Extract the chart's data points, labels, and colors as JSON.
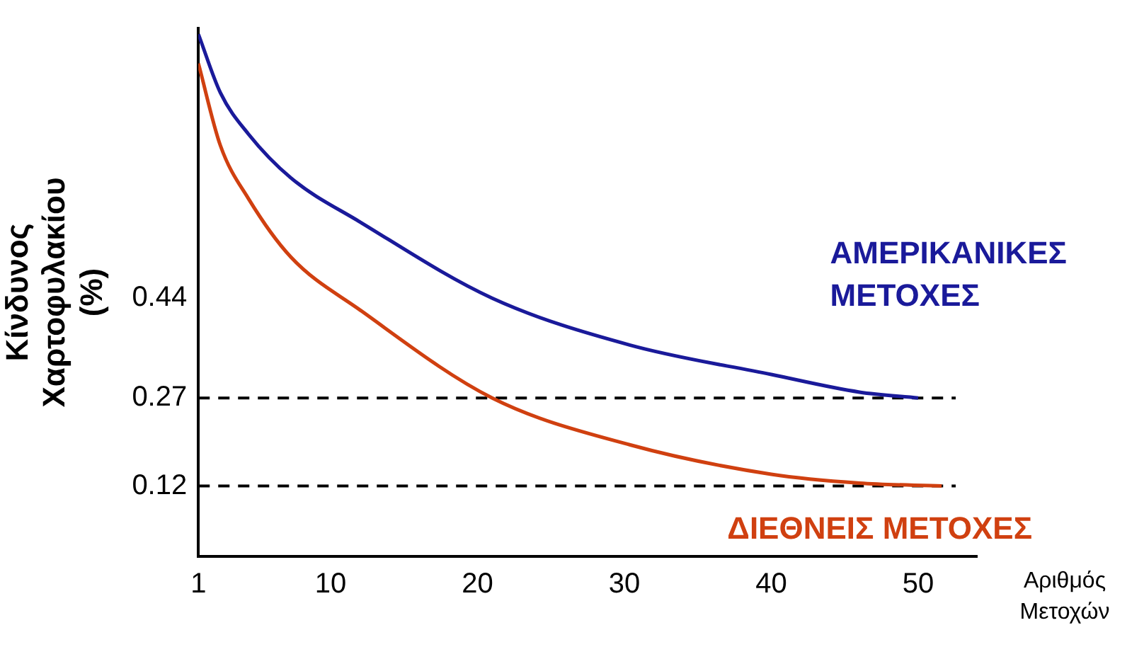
{
  "chart_data": {
    "type": "line",
    "ylabel": "Κίνδυνος Χαρτοφυλακίου (%)",
    "xlabel": "Αριθμός Μετοχών",
    "xlim": [
      1,
      54
    ],
    "xticks": [
      1,
      10,
      20,
      30,
      40,
      50
    ],
    "ylim": [
      0,
      0.9
    ],
    "yticks": [
      0.12,
      0.27,
      0.44
    ],
    "grid": false,
    "legend": false,
    "marker": "none",
    "line_style": "solid",
    "series": [
      {
        "name": "ΑΜΕΡΙΚΑΝΙΚΕΣ ΜΕΤΟΧΕΣ",
        "color": "#1a1a9a",
        "x": [
          1,
          2.5,
          4.4,
          7.3,
          12,
          21,
          30.4,
          40,
          46,
          50
        ],
        "values": [
          0.89,
          0.79,
          0.72,
          0.645,
          0.57,
          0.44,
          0.36,
          0.31,
          0.28,
          0.27
        ]
      },
      {
        "name": "ΔΙΕΘΝΕΙΣ ΜΕΤΟΧΕΣ",
        "color": "#d04010",
        "x": [
          1,
          2.5,
          4.4,
          7.3,
          12,
          21,
          30.4,
          40,
          46,
          51.6
        ],
        "values": [
          0.84,
          0.7,
          0.61,
          0.51,
          0.42,
          0.27,
          0.19,
          0.14,
          0.125,
          0.12
        ]
      }
    ],
    "ref_lines": [
      {
        "axis": "y",
        "value": 0.27,
        "color": "#000000",
        "line_style": "dashed"
      },
      {
        "axis": "y",
        "value": 0.12,
        "color": "#000000",
        "line_style": "dashed"
      }
    ]
  }
}
